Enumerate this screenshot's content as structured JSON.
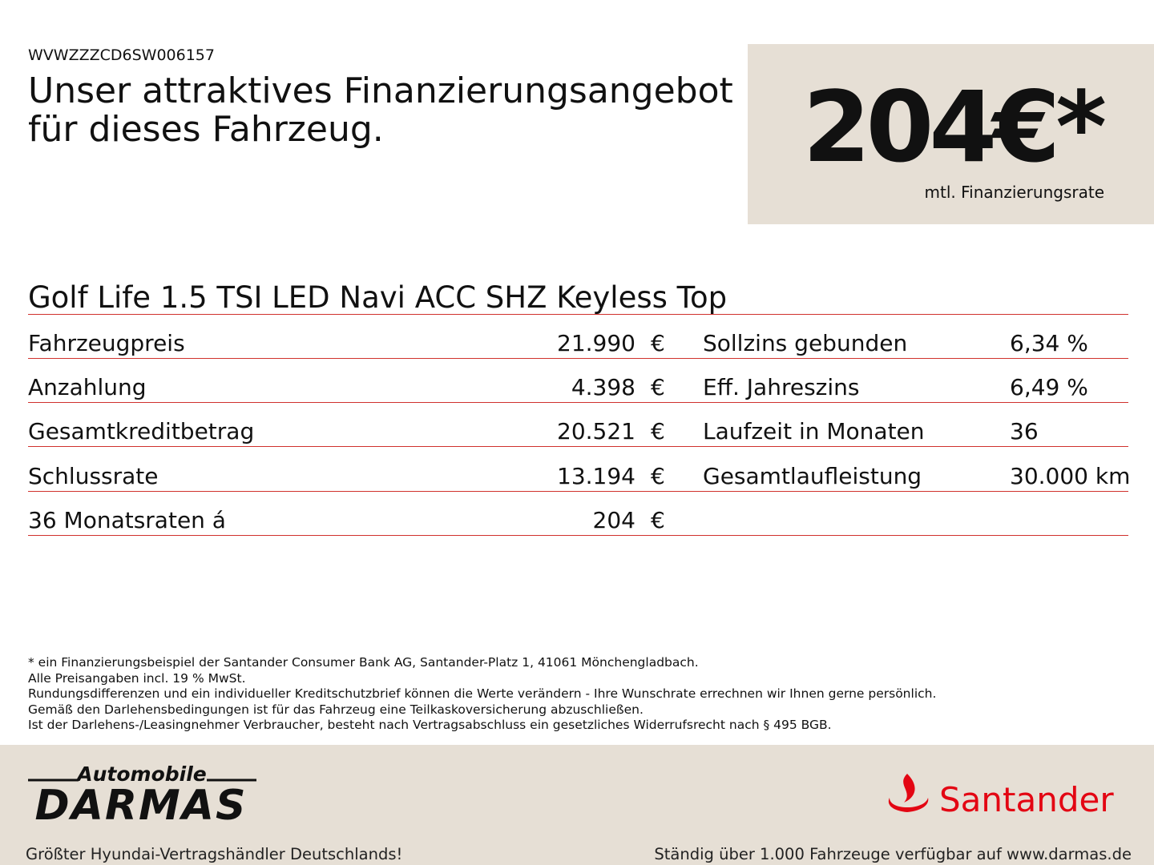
{
  "header": {
    "vin": "WVWZZZCD6SW006157",
    "title": [
      "Unser attraktives Finanzierungsangebot",
      "für dieses Fahrzeug."
    ]
  },
  "price_box": {
    "price": "204€*",
    "caption": "mtl. Finanzierungsrate"
  },
  "vehicle": {
    "name": "Golf Life 1.5 TSI LED Navi ACC SHZ Keyless Top"
  },
  "table": {
    "left": [
      [
        "Fahrzeugpreis",
        "21.990",
        "€"
      ],
      [
        "Anzahlung",
        "4.398",
        "€"
      ],
      [
        "Gesamtkreditbetrag",
        "20.521",
        "€"
      ],
      [
        "Schlussrate",
        "13.194",
        "€"
      ],
      [
        "36 Monatsraten á",
        "204",
        "€"
      ]
    ],
    "right": [
      [
        "Sollzins gebunden",
        "6,34 %"
      ],
      [
        "Eff. Jahreszins",
        "6,49 %"
      ],
      [
        "Laufzeit in Monaten",
        "36"
      ],
      [
        "Gesamtlaufleistung",
        "30.000 km"
      ]
    ]
  },
  "footnotes": [
    "* ein Finanzierungsbeispiel der Santander Consumer Bank AG, Santander-Platz 1, 41061 Mönchengladbach.",
    "Alle Preisangaben incl. 19 % MwSt.",
    "Rundungsdifferenzen und ein individueller Kreditschutzbrief können die Werte verändern - Ihre Wunschrate errechnen wir Ihnen gerne persönlich.",
    "Gemäß den Darlehensbedingungen ist für das Fahrzeug eine Teilkaskoversicherung abzuschließen.",
    "Ist der Darlehens-/Leasingnehmer Verbraucher, besteht nach Vertragsabschluss ein gesetzliches Widerrufsrecht nach § 495 BGB."
  ],
  "footer": {
    "dealer_small": "Automobile",
    "dealer_big": "DARMAS",
    "dealer_slogan": "Größter Hyundai-Vertragshändler Deutschlands!",
    "bank": "Santander",
    "tagline": "Ständig über 1.000 Fahrzeuge verfügbar auf www.darmas.de"
  }
}
